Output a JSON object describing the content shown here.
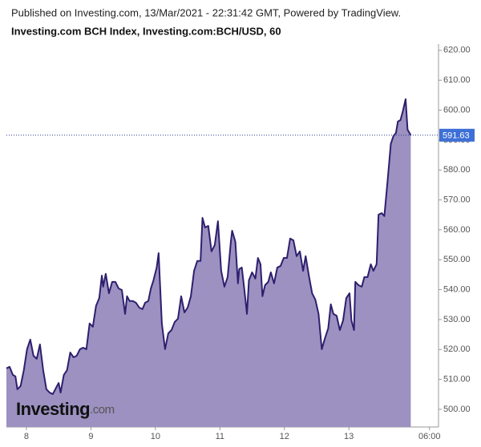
{
  "chart_data": {
    "type": "area",
    "title": "Published on Investing.com, 13/Mar/2021 - 22:31:42 GMT, Powered by TradingView.",
    "subtitle": "Investing.com BCH Index, Investing.com:BCH/USD, 60",
    "watermark": [
      "Investing",
      ".com"
    ],
    "x": [
      7.69,
      7.74,
      7.79,
      7.83,
      7.86,
      7.91,
      7.96,
      8.01,
      8.06,
      8.11,
      8.16,
      8.21,
      8.26,
      8.31,
      8.36,
      8.41,
      8.46,
      8.5,
      8.53,
      8.58,
      8.63,
      8.68,
      8.73,
      8.78,
      8.83,
      8.88,
      8.93,
      8.98,
      9.03,
      9.08,
      9.13,
      9.17,
      9.19,
      9.23,
      9.28,
      9.33,
      9.38,
      9.43,
      9.48,
      9.53,
      9.56,
      9.6,
      9.65,
      9.7,
      9.75,
      9.8,
      9.84,
      9.89,
      9.93,
      9.97,
      10.02,
      10.05,
      10.1,
      10.15,
      10.2,
      10.25,
      10.3,
      10.35,
      10.4,
      10.45,
      10.5,
      10.55,
      10.6,
      10.65,
      10.7,
      10.73,
      10.77,
      10.82,
      10.87,
      10.92,
      10.97,
      11.02,
      11.07,
      11.12,
      11.17,
      11.19,
      11.24,
      11.28,
      11.3,
      11.34,
      11.38,
      11.42,
      11.45,
      11.5,
      11.55,
      11.59,
      11.63,
      11.66,
      11.7,
      11.75,
      11.79,
      11.84,
      11.89,
      11.94,
      11.99,
      12.04,
      12.09,
      12.14,
      12.19,
      12.24,
      12.29,
      12.33,
      12.38,
      12.43,
      12.48,
      12.53,
      12.58,
      12.63,
      12.68,
      12.72,
      12.76,
      12.81,
      12.86,
      12.91,
      12.96,
      13.01,
      13.04,
      13.08,
      13.1,
      13.15,
      13.2,
      13.24,
      13.29,
      13.34,
      13.38,
      13.43,
      13.46,
      13.51,
      13.55,
      13.6,
      13.65,
      13.69,
      13.73,
      13.76,
      13.8,
      13.84,
      13.88,
      13.91,
      13.96
    ],
    "values": [
      513.7,
      514.2,
      511.5,
      511.0,
      506.7,
      507.8,
      513.1,
      520.1,
      523.3,
      517.9,
      516.9,
      521.7,
      513.1,
      506.7,
      505.6,
      505.1,
      507.2,
      508.8,
      505.6,
      511.5,
      513.1,
      519.0,
      517.4,
      517.9,
      520.1,
      520.6,
      520.1,
      528.7,
      527.6,
      534.6,
      537.2,
      544.7,
      541.0,
      545.3,
      538.8,
      542.6,
      542.6,
      540.4,
      539.9,
      531.9,
      537.8,
      536.2,
      536.2,
      535.6,
      534.0,
      533.5,
      535.6,
      536.2,
      540.4,
      543.1,
      547.4,
      552.2,
      528.7,
      520.1,
      525.4,
      526.5,
      529.2,
      530.3,
      537.8,
      532.4,
      534.0,
      537.8,
      546.3,
      549.6,
      549.6,
      564.0,
      560.8,
      561.3,
      552.8,
      554.9,
      562.9,
      546.3,
      541.0,
      544.2,
      556.0,
      559.7,
      556.0,
      542.1,
      546.9,
      547.4,
      539.9,
      531.9,
      543.1,
      545.8,
      543.7,
      550.6,
      548.5,
      537.8,
      541.5,
      542.6,
      545.8,
      542.1,
      547.4,
      547.9,
      550.6,
      550.6,
      557.1,
      556.5,
      551.2,
      552.8,
      546.3,
      551.2,
      544.7,
      538.8,
      536.7,
      531.9,
      520.1,
      523.8,
      527.1,
      535.1,
      531.9,
      531.3,
      526.5,
      529.7,
      537.2,
      538.8,
      529.7,
      526.5,
      542.6,
      541.5,
      541.0,
      544.2,
      544.2,
      548.5,
      546.3,
      548.5,
      565.1,
      565.6,
      564.6,
      576.3,
      588.7,
      591.3,
      592.4,
      596.2,
      596.7,
      599.9,
      603.7,
      593.5,
      591.63
    ],
    "color": "#2e1f6e",
    "fill": "#9c91c0",
    "last_value_color": "#3d6fd6",
    "xlim": [
      7.69,
      14.39
    ],
    "xticks": [
      8,
      9,
      10,
      11,
      12,
      13,
      {
        "value": 14.25,
        "label": "06:00"
      }
    ],
    "ylim": [
      494.1,
      622.1
    ],
    "yticks": [
      {
        "value": 500,
        "label": "500.00"
      },
      {
        "value": 510,
        "label": "510.00"
      },
      {
        "value": 520,
        "label": "520.00"
      },
      {
        "value": 530,
        "label": "530.00"
      },
      {
        "value": 540,
        "label": "540.00"
      },
      {
        "value": 550,
        "label": "550.00"
      },
      {
        "value": 560,
        "label": "560.00"
      },
      {
        "value": 570,
        "label": "570.00"
      },
      {
        "value": 580,
        "label": "580.00"
      },
      {
        "value": 590,
        "label": "590.00"
      },
      {
        "value": 600,
        "label": "600.00"
      },
      {
        "value": 610,
        "label": "610.00"
      },
      {
        "value": 620,
        "label": "620.00"
      }
    ],
    "grid": false
  }
}
